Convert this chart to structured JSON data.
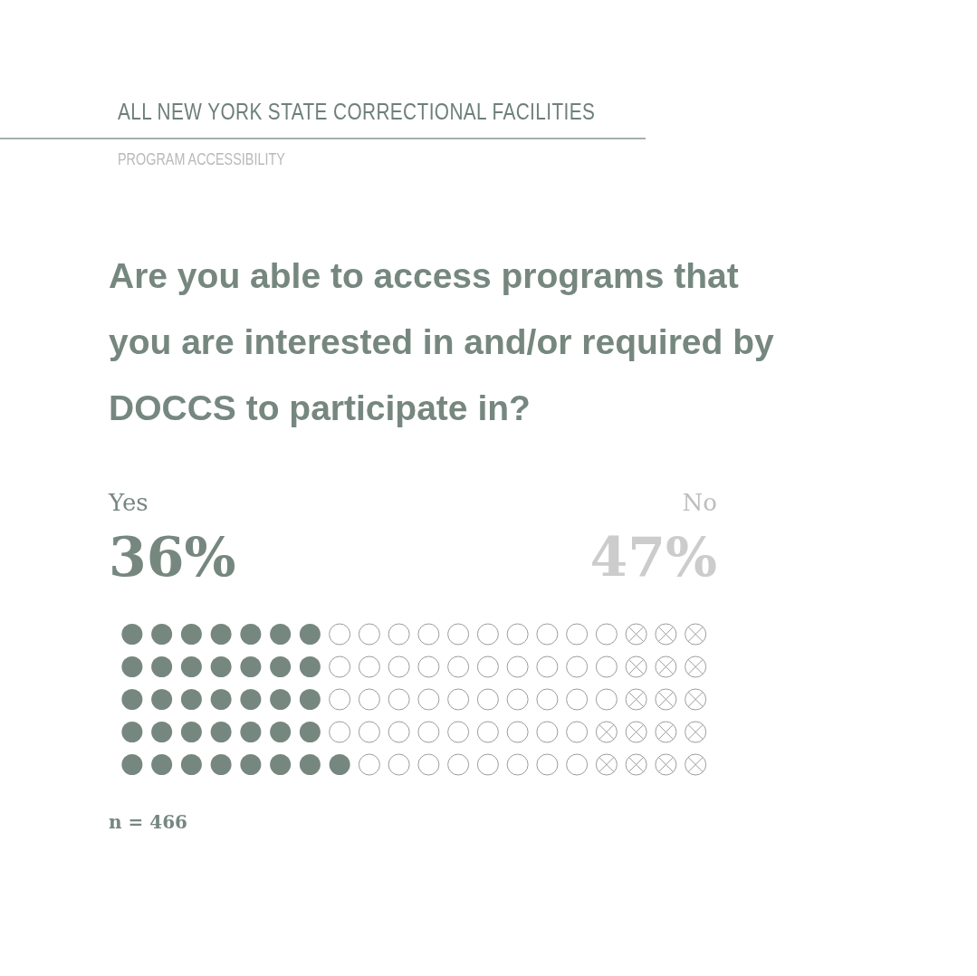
{
  "chart_data": {
    "type": "other",
    "title": "Are you able to access programs that you are interested in and/or required by DOCCS to participate in?",
    "annotations": [
      "ALL NEW YORK STATE CORRECTIONAL FACILITIES",
      "PROGRAM ACCESSIBILITY",
      "n = 466"
    ],
    "categories": [
      "Yes",
      "No"
    ],
    "values": [
      36,
      47
    ],
    "value_labels": [
      "36%",
      "47%"
    ],
    "colors": [
      "#76877f",
      "#9c9c9c"
    ]
  }
}
